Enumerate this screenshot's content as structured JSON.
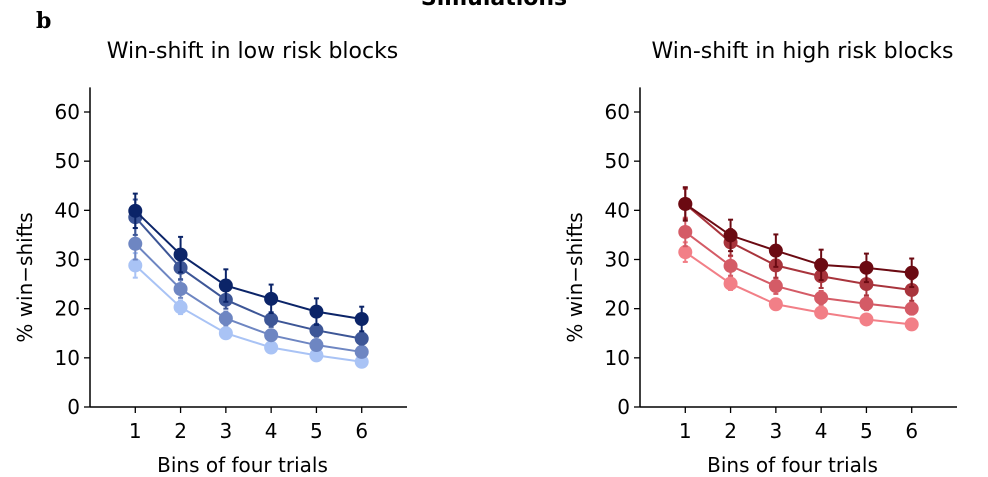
{
  "figure": {
    "suptitle": "Simulations",
    "panel_letter": "b"
  },
  "chart_data": [
    {
      "type": "line",
      "title": "Win-shift in low risk blocks",
      "xlabel": "Bins of four trials",
      "ylabel": "% win−shifts",
      "x": [
        1,
        2,
        3,
        4,
        5,
        6
      ],
      "xticks": [
        "1",
        "2",
        "3",
        "4",
        "5",
        "6"
      ],
      "xlim": [
        0.0,
        7.0
      ],
      "ylim": [
        0,
        65
      ],
      "yticks": [
        "0",
        "10",
        "20",
        "30",
        "40",
        "50",
        "60"
      ],
      "grid": false,
      "legend": "none",
      "series": [
        {
          "color": "#a9c3f5",
          "values": [
            28.8,
            20.3,
            15.0,
            12.1,
            10.5,
            9.2
          ],
          "err": [
            2.5,
            1.4,
            1.0,
            0.9,
            0.8,
            0.8
          ]
        },
        {
          "color": "#6e86c2",
          "values": [
            33.2,
            24.0,
            18.0,
            14.6,
            12.6,
            11.2
          ],
          "err": [
            3.2,
            1.8,
            1.4,
            1.1,
            1.0,
            0.9
          ]
        },
        {
          "color": "#3d5696",
          "values": [
            38.6,
            28.3,
            21.8,
            17.8,
            15.6,
            13.9
          ],
          "err": [
            3.6,
            2.3,
            1.8,
            1.5,
            1.3,
            1.2
          ]
        },
        {
          "color": "#0b2468",
          "values": [
            39.9,
            31.0,
            24.7,
            22.0,
            19.4,
            17.9
          ],
          "err": [
            3.5,
            3.6,
            3.3,
            2.9,
            2.7,
            2.5
          ]
        }
      ]
    },
    {
      "type": "line",
      "title": "Win-shift in high risk blocks",
      "xlabel": "Bins of four trials",
      "ylabel": "% win−shifts",
      "x": [
        1,
        2,
        3,
        4,
        5,
        6
      ],
      "xticks": [
        "1",
        "2",
        "3",
        "4",
        "5",
        "6"
      ],
      "xlim": [
        0.0,
        7.0
      ],
      "ylim": [
        0,
        65
      ],
      "yticks": [
        "0",
        "10",
        "20",
        "30",
        "40",
        "50",
        "60"
      ],
      "grid": false,
      "legend": "none",
      "series": [
        {
          "color": "#f27f87",
          "values": [
            31.5,
            25.1,
            20.9,
            19.2,
            17.8,
            16.8
          ],
          "err": [
            2.0,
            1.3,
            1.1,
            1.0,
            1.0,
            0.9
          ]
        },
        {
          "color": "#d45b66",
          "values": [
            35.6,
            28.7,
            24.6,
            22.2,
            21.0,
            20.0
          ],
          "err": [
            2.9,
            2.0,
            1.6,
            1.4,
            1.3,
            1.2
          ]
        },
        {
          "color": "#a8343c",
          "values": [
            41.3,
            33.5,
            28.8,
            26.6,
            25.0,
            23.8
          ],
          "err": [
            3.1,
            2.7,
            2.5,
            2.4,
            2.3,
            2.2
          ]
        },
        {
          "color": "#6b0a12",
          "values": [
            41.3,
            34.9,
            31.8,
            28.9,
            28.3,
            27.3
          ],
          "err": [
            3.4,
            3.2,
            3.3,
            3.1,
            2.9,
            2.9
          ]
        }
      ]
    }
  ]
}
